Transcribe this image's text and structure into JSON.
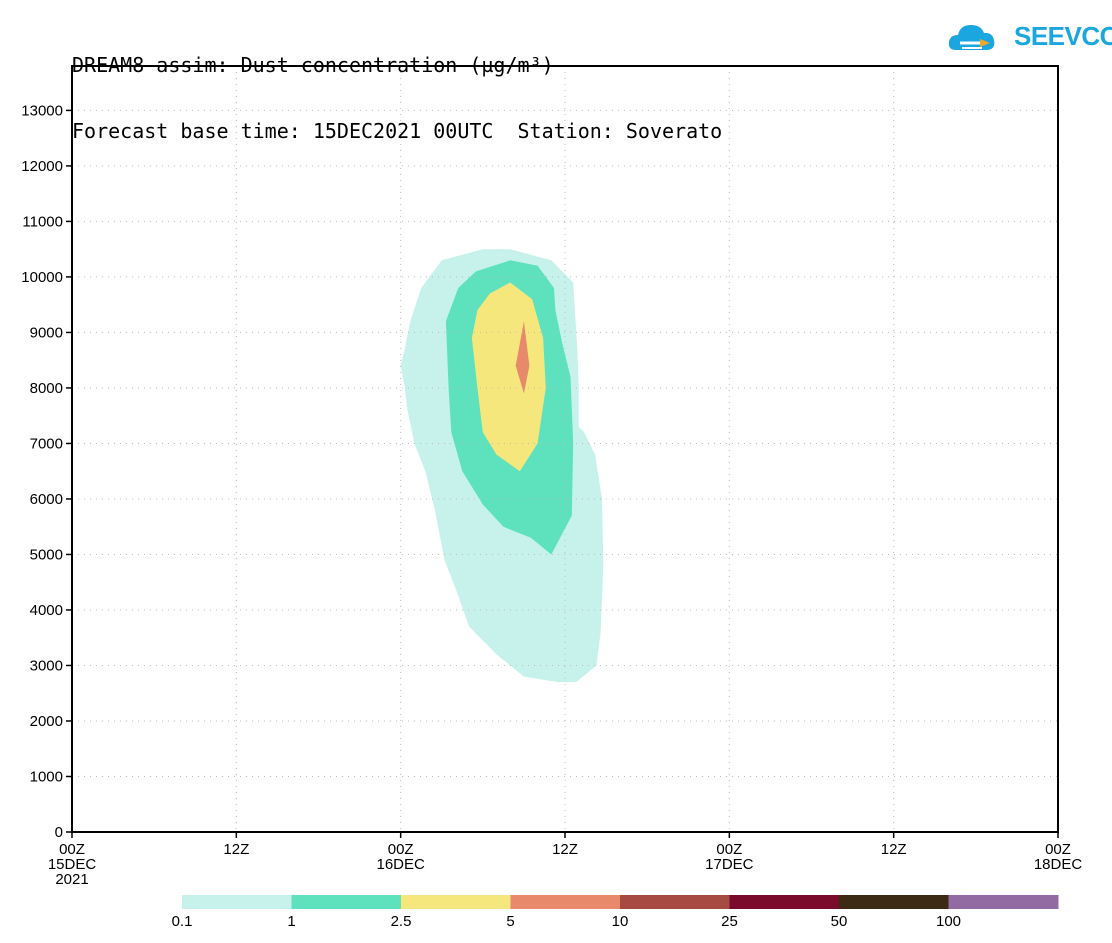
{
  "header": {
    "title_line1": "DREAM8-assim: Dust concentration (µg/m³)",
    "title_line2": "Forecast base time: 15DEC2021 00UTC  Station: Soverato"
  },
  "logo": {
    "text": "SEEVCCC",
    "brand_color": "#1aa6de",
    "accent_color": "#f5a623"
  },
  "chart_data": {
    "type": "area",
    "title": "DREAM8-assim: Dust concentration (µg/m³)",
    "subtitle": "Forecast base time: 15DEC2021 00UTC  Station: Soverato",
    "xlabel": "",
    "ylabel": "",
    "x_unit": "hours since 15DEC2021 00Z",
    "xlim": [
      0,
      72
    ],
    "ylim": [
      0,
      13800
    ],
    "grid": true,
    "x_ticks": [
      {
        "value": 0,
        "label": "00Z",
        "sub": "15DEC",
        "year": "2021"
      },
      {
        "value": 12,
        "label": "12Z"
      },
      {
        "value": 24,
        "label": "00Z",
        "sub": "16DEC"
      },
      {
        "value": 36,
        "label": "12Z"
      },
      {
        "value": 48,
        "label": "00Z",
        "sub": "17DEC"
      },
      {
        "value": 60,
        "label": "12Z"
      },
      {
        "value": 72,
        "label": "00Z",
        "sub": "18DEC"
      }
    ],
    "y_ticks": [
      0,
      1000,
      2000,
      3000,
      4000,
      5000,
      6000,
      7000,
      8000,
      9000,
      10000,
      11000,
      12000,
      13000
    ],
    "contours": [
      {
        "level": "0.1",
        "color": "#c6f2eb",
        "points": [
          [
            24,
            8400
          ],
          [
            24.3,
            8000
          ],
          [
            24.5,
            7600
          ],
          [
            25,
            7000
          ],
          [
            25.8,
            6500
          ],
          [
            26.5,
            5800
          ],
          [
            27.2,
            4900
          ],
          [
            28,
            4400
          ],
          [
            29,
            3700
          ],
          [
            31,
            3200
          ],
          [
            33,
            2800
          ],
          [
            35.5,
            2700
          ],
          [
            36.8,
            2700
          ],
          [
            38.3,
            3000
          ],
          [
            38.6,
            3600
          ],
          [
            38.8,
            4800
          ],
          [
            38.7,
            6000
          ],
          [
            38.2,
            6800
          ],
          [
            37.4,
            7200
          ],
          [
            37,
            7300
          ],
          [
            37,
            8000
          ],
          [
            36.9,
            8700
          ],
          [
            36.6,
            9900
          ],
          [
            35,
            10300
          ],
          [
            32,
            10500
          ],
          [
            30,
            10500
          ],
          [
            27,
            10300
          ],
          [
            25.5,
            9800
          ],
          [
            24.7,
            9200
          ],
          [
            24.3,
            8700
          ]
        ]
      },
      {
        "level": "1",
        "color": "#5ee2be",
        "points": [
          [
            27.3,
            9200
          ],
          [
            27.5,
            8000
          ],
          [
            27.7,
            7200
          ],
          [
            28.5,
            6500
          ],
          [
            30,
            5900
          ],
          [
            31.5,
            5500
          ],
          [
            33.5,
            5300
          ],
          [
            35,
            5000
          ],
          [
            36.5,
            5700
          ],
          [
            36.6,
            7000
          ],
          [
            36.4,
            8200
          ],
          [
            35.8,
            8800
          ],
          [
            35.3,
            9400
          ],
          [
            35.2,
            9800
          ],
          [
            34,
            10200
          ],
          [
            32,
            10300
          ],
          [
            29.5,
            10100
          ],
          [
            28.2,
            9800
          ]
        ]
      },
      {
        "level": "2.5",
        "color": "#f5e77c",
        "points": [
          [
            29.2,
            8900
          ],
          [
            29.6,
            8000
          ],
          [
            30,
            7200
          ],
          [
            31,
            6800
          ],
          [
            32.7,
            6500
          ],
          [
            34,
            7000
          ],
          [
            34.6,
            8000
          ],
          [
            34.4,
            8900
          ],
          [
            33.6,
            9600
          ],
          [
            32,
            9900
          ],
          [
            30.5,
            9700
          ],
          [
            29.6,
            9400
          ]
        ]
      },
      {
        "level": "5",
        "color": "#e9896b",
        "points": [
          [
            33,
            9200
          ],
          [
            33.4,
            8400
          ],
          [
            33,
            7900
          ],
          [
            32.4,
            8400
          ]
        ]
      }
    ],
    "colorbar": {
      "labels": [
        "0.1",
        "1",
        "2.5",
        "5",
        "10",
        "25",
        "50",
        "100"
      ],
      "colors": [
        "#c6f2eb",
        "#5ee2be",
        "#f5e77c",
        "#e9896b",
        "#a74a42",
        "#7a0b2c",
        "#3c2a14",
        "#936ba3"
      ]
    }
  }
}
